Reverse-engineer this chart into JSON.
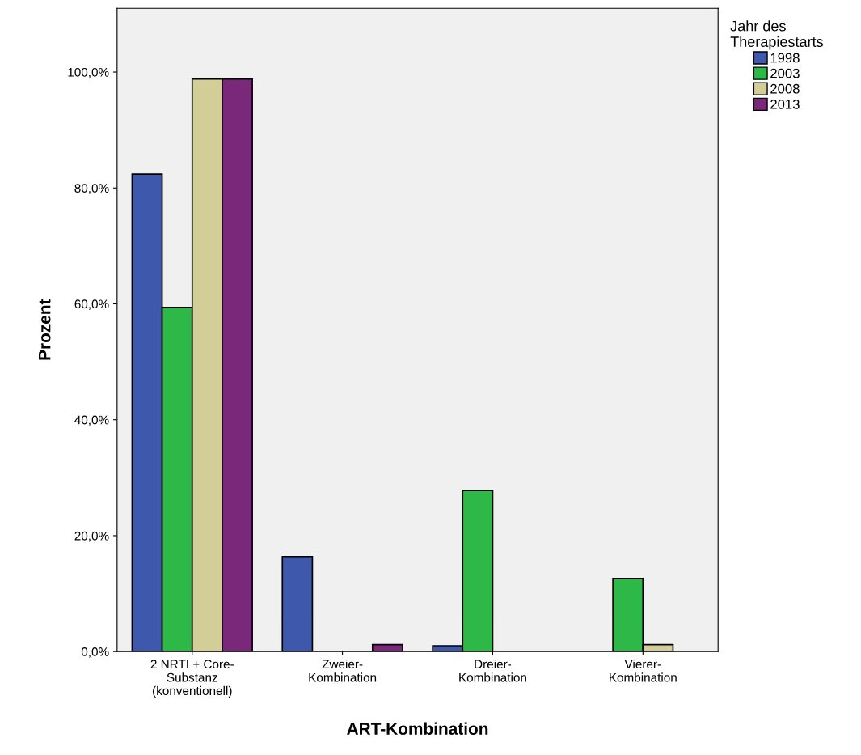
{
  "chart_data": {
    "type": "bar",
    "xlabel": "ART-Kombination",
    "ylabel": "Prozent",
    "legend_title": "Jahr des\nTherapiestarts",
    "legend": "top right",
    "categories": [
      "2 NRTI + Core-\nSubstanz\n(konventionell)",
      "Zweier-\nKombination",
      "Dreier-\nKombination",
      "Vierer-\nKombination"
    ],
    "series": [
      {
        "name": "1998",
        "color": "#3e58ac",
        "values": [
          82.4,
          16.4,
          1.0,
          0
        ]
      },
      {
        "name": "2003",
        "color": "#2eb848",
        "values": [
          59.4,
          0,
          27.8,
          12.6
        ]
      },
      {
        "name": "2008",
        "color": "#d3ce97",
        "values": [
          98.8,
          0,
          0,
          1.2
        ]
      },
      {
        "name": "2013",
        "color": "#79287a",
        "values": [
          98.8,
          1.2,
          0,
          0
        ]
      }
    ],
    "ylim": [
      0,
      111
    ],
    "yticks": [
      {
        "value": 0,
        "label": "0,0%"
      },
      {
        "value": 20,
        "label": "20,0%"
      },
      {
        "value": 40,
        "label": "40,0%"
      },
      {
        "value": 60,
        "label": "60,0%"
      },
      {
        "value": 80,
        "label": "80,0%"
      },
      {
        "value": 100,
        "label": "100,0%"
      }
    ],
    "grid": false
  }
}
